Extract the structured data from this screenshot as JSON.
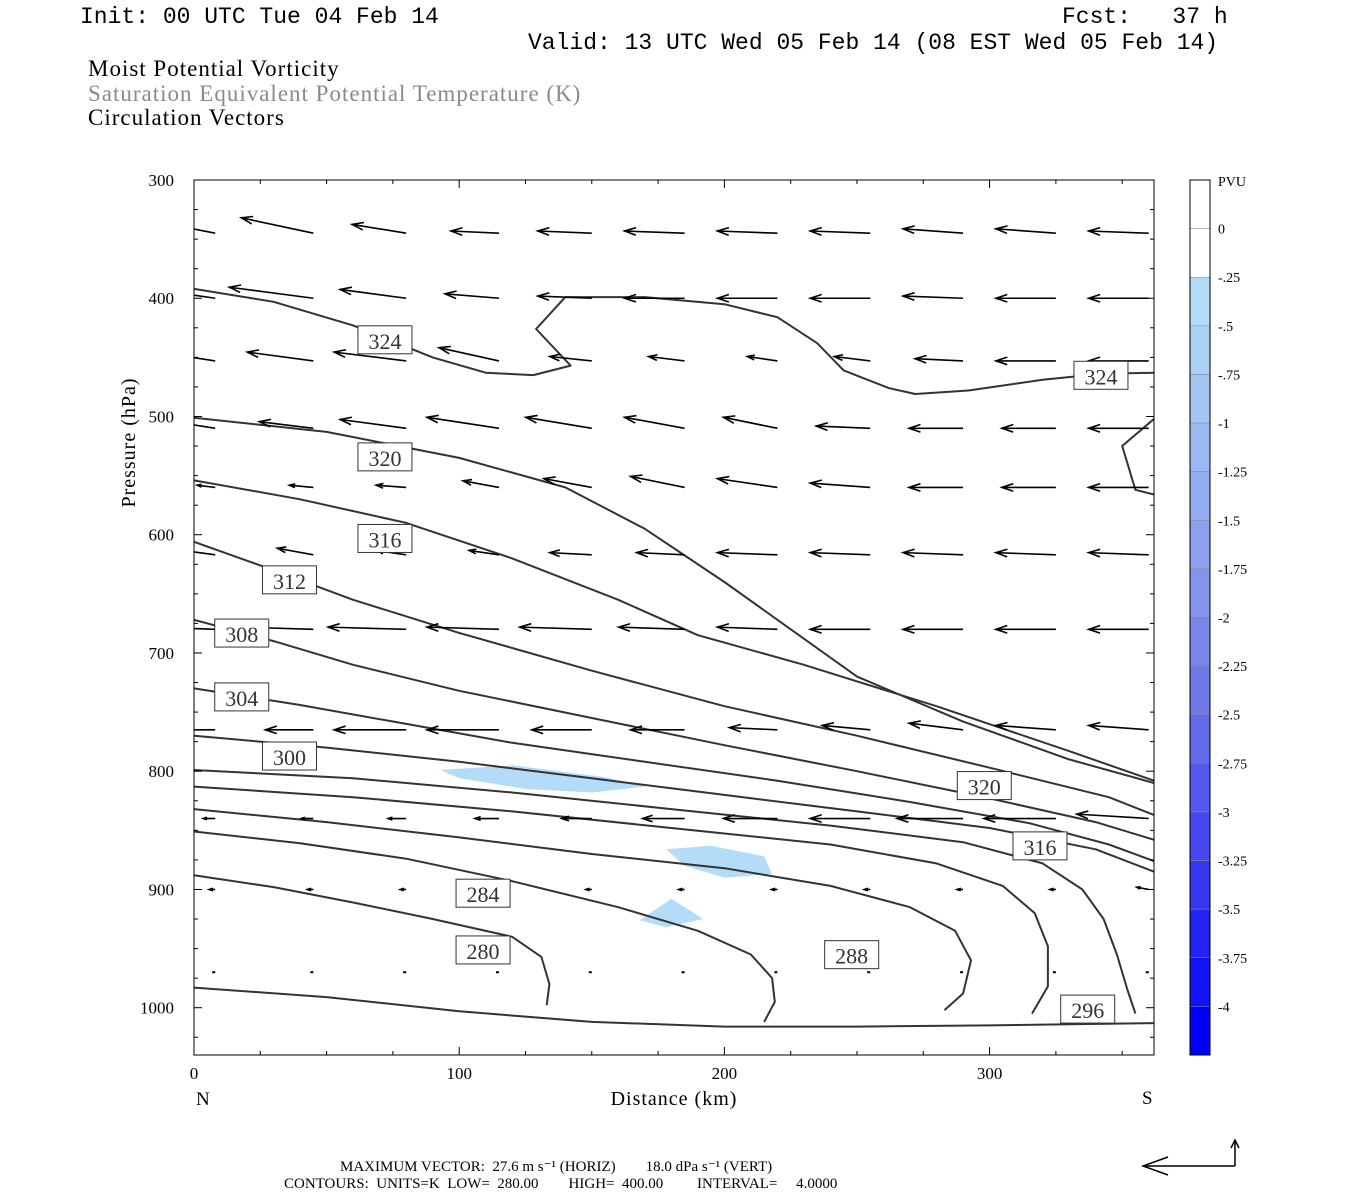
{
  "header": {
    "init": "Init: 00 UTC Tue 04 Feb 14",
    "fcst": "Fcst:   37 h",
    "valid": "Valid: 13 UTC Wed 05 Feb 14 (08 EST Wed 05 Feb 14)"
  },
  "titles": [
    "Moist Potential Vorticity",
    "Saturation Equivalent Potential Temperature (K)",
    "Circulation Vectors"
  ],
  "colors": {
    "contour": "#333333",
    "title_gray": "#8a8a8a",
    "shade_light": "#b4dcf8"
  },
  "chart_data": {
    "type": "cross-section",
    "xlabel": "Distance (km)",
    "ylabel": "Pressure (hPa)",
    "xlim": [
      0,
      362
    ],
    "ylim": [
      1040,
      300
    ],
    "x_ticks": [
      0,
      100,
      200,
      300
    ],
    "y_ticks": [
      300,
      400,
      500,
      600,
      700,
      800,
      900,
      1000
    ],
    "left_end_label": "N",
    "right_end_label": "S",
    "colorbar": {
      "unit": "PVU",
      "labels": [
        "0",
        "-.25",
        "-.5",
        "-.75",
        "-1",
        "-1.25",
        "-1.5",
        "-1.75",
        "-2",
        "-2.25",
        "-2.5",
        "-2.75",
        "-3",
        "-3.25",
        "-3.5",
        "-3.75",
        "-4"
      ],
      "colors": [
        "#ffffff",
        "#ffffff",
        "#b4dcf8",
        "#acd0f6",
        "#a4c4f4",
        "#9cb8f2",
        "#94acf0",
        "#8ca0ee",
        "#8494ec",
        "#7a86ea",
        "#6e78e8",
        "#626aea",
        "#5458ec",
        "#4646ee",
        "#3636f0",
        "#2424f4",
        "#1212f8",
        "#0000fc"
      ]
    },
    "theta_e_contours": [
      {
        "label": "280",
        "points": [
          [
            0,
            888
          ],
          [
            30,
            898
          ],
          [
            60,
            911
          ],
          [
            90,
            925
          ],
          [
            120,
            940
          ],
          [
            131,
            957
          ],
          [
            134,
            980
          ],
          [
            133,
            998
          ]
        ],
        "label_at": [
          108,
          947
        ]
      },
      {
        "label": "284",
        "points": [
          [
            0,
            851
          ],
          [
            40,
            861
          ],
          [
            80,
            874
          ],
          [
            120,
            893
          ],
          [
            160,
            915
          ],
          [
            190,
            935
          ],
          [
            210,
            955
          ],
          [
            218,
            975
          ],
          [
            219,
            995
          ],
          [
            215,
            1012
          ]
        ],
        "label_at": [
          108,
          900
        ]
      },
      {
        "label": "288",
        "points": [
          [
            0,
            832
          ],
          [
            50,
            843
          ],
          [
            100,
            856
          ],
          [
            150,
            870
          ],
          [
            200,
            882
          ],
          [
            240,
            897
          ],
          [
            270,
            915
          ],
          [
            287,
            935
          ],
          [
            293,
            960
          ],
          [
            290,
            988
          ],
          [
            283,
            1002
          ]
        ],
        "label_at": [
          248,
          953
        ]
      },
      {
        "label": "",
        "points": [
          [
            0,
            813
          ],
          [
            60,
            822
          ],
          [
            120,
            834
          ],
          [
            180,
            848
          ],
          [
            240,
            862
          ],
          [
            280,
            878
          ],
          [
            305,
            897
          ],
          [
            317,
            920
          ],
          [
            322,
            948
          ],
          [
            322,
            982
          ],
          [
            316,
            1005
          ]
        ]
      },
      {
        "label": "",
        "points": [
          [
            0,
            799
          ],
          [
            60,
            806
          ],
          [
            120,
            818
          ],
          [
            180,
            832
          ],
          [
            240,
            846
          ],
          [
            290,
            860
          ],
          [
            320,
            878
          ],
          [
            335,
            900
          ],
          [
            343,
            925
          ],
          [
            348,
            955
          ],
          [
            352,
            985
          ],
          [
            355,
            1005
          ]
        ]
      },
      {
        "label": "296",
        "points": [
          [
            0,
            983
          ],
          [
            50,
            991
          ],
          [
            100,
            1003
          ],
          [
            150,
            1012
          ],
          [
            200,
            1016
          ],
          [
            250,
            1016
          ],
          [
            300,
            1015
          ],
          [
            362,
            1013
          ]
        ],
        "label_at": [
          337,
          1017
        ]
      },
      {
        "label": "300",
        "points": [
          [
            0,
            770
          ],
          [
            50,
            780
          ],
          [
            100,
            792
          ],
          [
            150,
            806
          ],
          [
            200,
            820
          ],
          [
            250,
            834
          ],
          [
            300,
            848
          ],
          [
            340,
            866
          ],
          [
            362,
            885
          ]
        ],
        "label_at": [
          37,
          770
        ]
      },
      {
        "label": "304",
        "points": [
          [
            0,
            730
          ],
          [
            40,
            744
          ],
          [
            80,
            760
          ],
          [
            120,
            776
          ],
          [
            170,
            792
          ],
          [
            220,
            808
          ],
          [
            270,
            826
          ],
          [
            315,
            844
          ],
          [
            345,
            862
          ],
          [
            362,
            876
          ]
        ],
        "label_at": [
          18,
          738
        ]
      },
      {
        "label": "308",
        "points": [
          [
            0,
            672
          ],
          [
            30,
            690
          ],
          [
            60,
            710
          ],
          [
            100,
            732
          ],
          [
            150,
            755
          ],
          [
            200,
            778
          ],
          [
            250,
            800
          ],
          [
            300,
            823
          ],
          [
            340,
            843
          ],
          [
            362,
            858
          ]
        ],
        "label_at": [
          18,
          684
        ]
      },
      {
        "label": "312",
        "points": [
          [
            0,
            606
          ],
          [
            30,
            630
          ],
          [
            60,
            655
          ],
          [
            100,
            683
          ],
          [
            150,
            715
          ],
          [
            200,
            745
          ],
          [
            250,
            770
          ],
          [
            300,
            797
          ],
          [
            345,
            822
          ],
          [
            362,
            837
          ]
        ],
        "label_at": [
          36,
          639
        ]
      },
      {
        "label": "316",
        "points": [
          [
            0,
            554
          ],
          [
            40,
            570
          ],
          [
            80,
            590
          ],
          [
            120,
            620
          ],
          [
            160,
            655
          ],
          [
            190,
            685
          ],
          [
            230,
            710
          ],
          [
            280,
            745
          ],
          [
            330,
            783
          ],
          [
            362,
            808
          ]
        ],
        "label_at": [
          72,
          608
        ]
      },
      {
        "label": "320",
        "points": [
          [
            0,
            501
          ],
          [
            50,
            513
          ],
          [
            100,
            535
          ],
          [
            140,
            560
          ],
          [
            170,
            595
          ],
          [
            200,
            640
          ],
          [
            225,
            680
          ],
          [
            250,
            720
          ],
          [
            290,
            758
          ],
          [
            330,
            790
          ],
          [
            362,
            810
          ]
        ],
        "label_at": [
          72,
          535
        ]
      },
      {
        "label": "324",
        "points": [
          [
            0,
            392
          ],
          [
            30,
            403
          ],
          [
            60,
            423
          ],
          [
            90,
            450
          ],
          [
            110,
            463
          ],
          [
            128,
            465
          ],
          [
            142,
            457
          ],
          [
            129,
            426
          ],
          [
            140,
            399
          ],
          [
            170,
            399
          ],
          [
            200,
            405
          ],
          [
            220,
            416
          ],
          [
            235,
            438
          ],
          [
            245,
            461
          ],
          [
            262,
            476
          ],
          [
            272,
            481
          ],
          [
            292,
            478
          ],
          [
            320,
            469
          ],
          [
            342,
            464
          ],
          [
            362,
            463
          ]
        ],
        "label_at": [
          72,
          436
        ]
      },
      {
        "label": "",
        "points": [
          [
            362,
            502
          ],
          [
            350,
            525
          ],
          [
            355,
            562
          ],
          [
            362,
            566
          ]
        ]
      }
    ],
    "contour_labels": [
      {
        "text": "324",
        "x": 72,
        "p": 436
      },
      {
        "text": "324",
        "x": 342,
        "p": 466
      },
      {
        "text": "320",
        "x": 72,
        "p": 535
      },
      {
        "text": "316",
        "x": 72,
        "p": 604
      },
      {
        "text": "312",
        "x": 36,
        "p": 639
      },
      {
        "text": "308",
        "x": 18,
        "p": 684
      },
      {
        "text": "304",
        "x": 18,
        "p": 738
      },
      {
        "text": "300",
        "x": 36,
        "p": 788
      },
      {
        "text": "320",
        "x": 298,
        "p": 813
      },
      {
        "text": "316",
        "x": 319,
        "p": 864
      },
      {
        "text": "284",
        "x": 109,
        "p": 904
      },
      {
        "text": "288",
        "x": 248,
        "p": 956
      },
      {
        "text": "280",
        "x": 109,
        "p": 952
      },
      {
        "text": "296",
        "x": 337,
        "p": 1002
      }
    ],
    "mpv_regions": [
      {
        "value": "-.25 to -.5",
        "points": [
          [
            93,
            799
          ],
          [
            120,
            795
          ],
          [
            155,
            805
          ],
          [
            170,
            813
          ],
          [
            150,
            818
          ],
          [
            125,
            815
          ],
          [
            100,
            806
          ]
        ]
      },
      {
        "value": "-.25 to -.5",
        "points": [
          [
            178,
            866
          ],
          [
            195,
            863
          ],
          [
            215,
            872
          ],
          [
            218,
            887
          ],
          [
            200,
            890
          ],
          [
            185,
            880
          ]
        ]
      },
      {
        "value": "-.25 to -.5",
        "points": [
          [
            168,
            926
          ],
          [
            180,
            908
          ],
          [
            192,
            925
          ],
          [
            178,
            932
          ]
        ]
      }
    ],
    "vectors": {
      "p_levels": [
        345,
        400,
        453,
        510,
        560,
        617,
        680,
        765,
        840,
        900,
        970
      ],
      "x_levels": [
        8,
        45,
        80,
        115,
        150,
        185,
        220,
        255,
        290,
        325,
        360
      ],
      "u": [
        [
          -15,
          -12,
          -9,
          -8,
          -9,
          -10,
          -10,
          -10,
          -10,
          -10,
          -10
        ],
        [
          -15,
          -14,
          -11,
          -9,
          -9,
          -10,
          -10,
          -10,
          -10,
          -10,
          -10
        ],
        [
          -12,
          -11,
          -12,
          -10,
          -7,
          -6,
          -5,
          -6,
          -8,
          -10,
          -10
        ],
        [
          -7,
          -9,
          -11,
          -12,
          -11,
          -10,
          -9,
          -9,
          -9,
          -9,
          -10
        ],
        [
          -3,
          -4,
          -5,
          -6,
          -8,
          -9,
          -10,
          -10,
          -9,
          -9,
          -10
        ],
        [
          -8,
          -6,
          -5,
          -5,
          -7,
          -8,
          -10,
          -10,
          -10,
          -10,
          -10
        ],
        [
          -10,
          -12,
          -13,
          -12,
          -12,
          -11,
          -10,
          -10,
          -10,
          -10,
          -10
        ],
        [
          -5,
          -8,
          -12,
          -12,
          -10,
          -9,
          -8,
          -8,
          -9,
          -10,
          -10
        ],
        [
          -2,
          -2,
          -3,
          -4,
          -5,
          -7,
          -9,
          -10,
          -11,
          -12,
          -12
        ],
        [
          -1,
          -1,
          -1,
          -1,
          -1,
          -1,
          -1,
          -1,
          -1,
          -1,
          -2
        ],
        [
          0,
          0,
          0,
          0,
          0,
          0,
          0,
          0,
          0,
          0,
          0
        ]
      ],
      "w": [
        [
          8,
          7,
          4,
          1,
          1,
          1,
          1,
          1,
          2,
          2,
          1
        ],
        [
          6,
          5,
          4,
          2,
          1,
          0,
          0,
          0,
          1,
          0,
          0
        ],
        [
          5,
          4,
          4,
          6,
          2,
          2,
          2,
          2,
          1,
          0,
          0
        ],
        [
          3,
          3,
          4,
          5,
          5,
          5,
          5,
          1,
          0,
          0,
          0
        ],
        [
          1,
          1,
          1,
          3,
          4,
          5,
          4,
          2,
          0,
          0,
          0
        ],
        [
          3,
          3,
          2,
          2,
          1,
          1,
          1,
          1,
          1,
          1,
          1
        ],
        [
          1,
          1,
          1,
          1,
          1,
          1,
          1,
          0,
          0,
          0,
          0
        ],
        [
          0,
          0,
          0,
          0,
          0,
          0,
          1,
          2,
          3,
          2,
          2
        ],
        [
          0,
          0,
          0,
          0,
          0,
          0,
          0,
          0,
          0,
          0,
          2
        ],
        [
          0,
          0,
          0,
          0,
          0,
          0,
          0,
          0,
          0,
          0,
          1
        ],
        [
          0,
          0,
          0,
          0,
          0,
          0,
          0,
          0,
          0,
          0,
          0
        ]
      ]
    },
    "reference_vector": "27.6 m s-1 (HORIZ), 18.0 dPa s-1 (VERT)"
  },
  "footer": {
    "line1": "MAXIMUM VECTOR:  27.6 m s⁻¹ (HORIZ)        18.0 dPa s⁻¹ (VERT)",
    "line2": "CONTOURS:  UNITS=K  LOW=  280.00        HIGH=  400.00         INTERVAL=     4.0000"
  }
}
